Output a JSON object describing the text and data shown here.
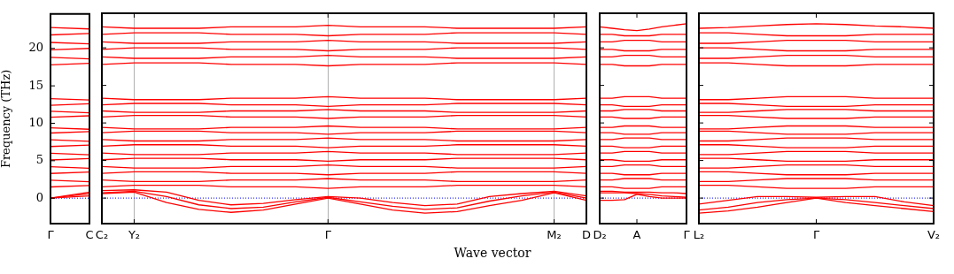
{
  "chart_data": [
    {
      "type": "line",
      "ylabel": "Frequency (THz)",
      "categories": [
        "Γ",
        "C"
      ],
      "ylim": [
        -3.4,
        24.6
      ],
      "yticks": [
        0,
        5,
        10,
        15,
        20
      ],
      "marker": "none",
      "line_style": "solid",
      "legend": false,
      "ref_lines": [
        {
          "axis": "y",
          "value": 0,
          "color": "#0000ff",
          "line_style": "dotted"
        }
      ],
      "series": [
        {
          "color": "#ff0000",
          "values": [
            0,
            0.8
          ]
        },
        {
          "color": "#ff0000",
          "values": [
            0,
            0.6
          ]
        },
        {
          "color": "#ff0000",
          "values": [
            0,
            0.3
          ]
        },
        {
          "color": "#ff0000",
          "values": [
            1.5,
            1.7
          ]
        },
        {
          "color": "#ff0000",
          "values": [
            2.4,
            2.2
          ]
        },
        {
          "color": "#ff0000",
          "values": [
            3.3,
            3.5
          ]
        },
        {
          "color": "#ff0000",
          "values": [
            4.2,
            4.0
          ]
        },
        {
          "color": "#ff0000",
          "values": [
            5.1,
            5.3
          ]
        },
        {
          "color": "#ff0000",
          "values": [
            6.0,
            5.8
          ]
        },
        {
          "color": "#ff0000",
          "values": [
            6.9,
            7.1
          ]
        },
        {
          "color": "#ff0000",
          "values": [
            7.8,
            7.6
          ]
        },
        {
          "color": "#ff0000",
          "values": [
            8.7,
            8.9
          ]
        },
        {
          "color": "#ff0000",
          "values": [
            9.4,
            9.2
          ]
        },
        {
          "color": "#ff0000",
          "values": [
            10.8,
            11.0
          ]
        },
        {
          "color": "#ff0000",
          "values": [
            11.6,
            11.4
          ]
        },
        {
          "color": "#ff0000",
          "values": [
            12.4,
            12.6
          ]
        },
        {
          "color": "#ff0000",
          "values": [
            13.3,
            13.1
          ]
        },
        {
          "color": "#ff0000",
          "values": [
            17.8,
            18.0
          ]
        },
        {
          "color": "#ff0000",
          "values": [
            18.8,
            18.6
          ]
        },
        {
          "color": "#ff0000",
          "values": [
            19.8,
            20.0
          ]
        },
        {
          "color": "#ff0000",
          "values": [
            20.8,
            20.6
          ]
        },
        {
          "color": "#ff0000",
          "values": [
            21.8,
            22.0
          ]
        },
        {
          "color": "#ff0000",
          "values": [
            22.8,
            22.6
          ]
        }
      ]
    },
    {
      "type": "line",
      "xlabel": "Wave vector",
      "categories": [
        "C₂",
        "Y₂",
        null,
        null,
        null,
        null,
        null,
        "Γ",
        null,
        null,
        null,
        null,
        null,
        null,
        "M₂",
        "D"
      ],
      "ylim": [
        -3.4,
        24.6
      ],
      "yticks": [
        0,
        5,
        10,
        15,
        20
      ],
      "tick_labels": "x",
      "grid": "x",
      "marker": "none",
      "line_style": "solid",
      "legend": false,
      "ref_lines": [
        {
          "axis": "y",
          "value": 0,
          "color": "#0000ff",
          "line_style": "dotted"
        }
      ],
      "series": [
        {
          "color": "#ff0000",
          "values": [
            0.6,
            0.8,
            -0.6,
            -1.5,
            -1.9,
            -1.6,
            -0.8,
            0,
            -0.8,
            -1.6,
            -2.0,
            -1.8,
            -1.0,
            -0.3,
            0.7,
            -0.3
          ]
        },
        {
          "color": "#ff0000",
          "values": [
            0.7,
            0.9,
            0.2,
            -0.9,
            -1.4,
            -1.2,
            -0.5,
            0.1,
            -0.5,
            -1.1,
            -1.5,
            -1.3,
            -0.4,
            0.3,
            0.8,
            0.0
          ]
        },
        {
          "color": "#ff0000",
          "values": [
            1.0,
            1.1,
            0.8,
            -0.3,
            -0.9,
            -0.7,
            -0.2,
            0.2,
            0,
            -0.6,
            -1.0,
            -0.8,
            0.2,
            0.6,
            0.9,
            0.3
          ]
        },
        {
          "color": "#ff0000",
          "values": [
            1.5,
            1.7,
            1.7,
            1.7,
            1.5,
            1.5,
            1.5,
            1.3,
            1.5,
            1.5,
            1.5,
            1.7,
            1.7,
            1.7,
            1.7,
            1.5
          ]
        },
        {
          "color": "#ff0000",
          "values": [
            2.4,
            2.2,
            2.2,
            2.2,
            2.4,
            2.4,
            2.4,
            2.6,
            2.4,
            2.4,
            2.4,
            2.2,
            2.2,
            2.2,
            2.2,
            2.4
          ]
        },
        {
          "color": "#ff0000",
          "values": [
            3.3,
            3.5,
            3.5,
            3.5,
            3.3,
            3.3,
            3.3,
            3.1,
            3.3,
            3.3,
            3.3,
            3.5,
            3.5,
            3.5,
            3.5,
            3.3
          ]
        },
        {
          "color": "#ff0000",
          "values": [
            4.2,
            4.0,
            4.0,
            4.0,
            4.2,
            4.2,
            4.2,
            4.4,
            4.2,
            4.2,
            4.2,
            4.0,
            4.0,
            4.0,
            4.0,
            4.2
          ]
        },
        {
          "color": "#ff0000",
          "values": [
            5.1,
            5.3,
            5.3,
            5.3,
            5.1,
            5.1,
            5.1,
            4.9,
            5.1,
            5.1,
            5.1,
            5.3,
            5.3,
            5.3,
            5.3,
            5.1
          ]
        },
        {
          "color": "#ff0000",
          "values": [
            6.0,
            5.8,
            5.8,
            5.8,
            6.0,
            6.0,
            6.0,
            6.2,
            6.0,
            6.0,
            6.0,
            5.8,
            5.8,
            5.8,
            5.8,
            6.0
          ]
        },
        {
          "color": "#ff0000",
          "values": [
            6.9,
            7.1,
            7.1,
            7.1,
            6.9,
            6.9,
            6.9,
            6.7,
            6.9,
            6.9,
            6.9,
            7.1,
            7.1,
            7.1,
            7.1,
            6.9
          ]
        },
        {
          "color": "#ff0000",
          "values": [
            7.8,
            7.6,
            7.6,
            7.6,
            7.8,
            7.8,
            7.8,
            8.0,
            7.8,
            7.8,
            7.8,
            7.6,
            7.6,
            7.6,
            7.6,
            7.8
          ]
        },
        {
          "color": "#ff0000",
          "values": [
            8.7,
            8.9,
            8.9,
            8.9,
            8.7,
            8.7,
            8.7,
            8.5,
            8.7,
            8.7,
            8.7,
            8.9,
            8.9,
            8.9,
            8.9,
            8.7
          ]
        },
        {
          "color": "#ff0000",
          "values": [
            9.4,
            9.2,
            9.2,
            9.2,
            9.4,
            9.4,
            9.4,
            9.6,
            9.4,
            9.4,
            9.4,
            9.2,
            9.2,
            9.2,
            9.2,
            9.4
          ]
        },
        {
          "color": "#ff0000",
          "values": [
            10.8,
            11.0,
            11.0,
            11.0,
            10.8,
            10.8,
            10.8,
            10.6,
            10.8,
            10.8,
            10.8,
            11.0,
            11.0,
            11.0,
            11.0,
            10.8
          ]
        },
        {
          "color": "#ff0000",
          "values": [
            11.6,
            11.4,
            11.4,
            11.4,
            11.6,
            11.6,
            11.6,
            11.8,
            11.6,
            11.6,
            11.6,
            11.4,
            11.4,
            11.4,
            11.4,
            11.6
          ]
        },
        {
          "color": "#ff0000",
          "values": [
            12.4,
            12.6,
            12.6,
            12.6,
            12.4,
            12.4,
            12.4,
            12.2,
            12.4,
            12.4,
            12.4,
            12.6,
            12.6,
            12.6,
            12.6,
            12.4
          ]
        },
        {
          "color": "#ff0000",
          "values": [
            13.3,
            13.1,
            13.1,
            13.1,
            13.3,
            13.3,
            13.3,
            13.5,
            13.3,
            13.3,
            13.3,
            13.1,
            13.1,
            13.1,
            13.1,
            13.3
          ]
        },
        {
          "color": "#ff0000",
          "values": [
            17.8,
            18.0,
            18.0,
            18.0,
            17.8,
            17.8,
            17.8,
            17.6,
            17.8,
            17.8,
            17.8,
            18.0,
            18.0,
            18.0,
            18.0,
            17.8
          ]
        },
        {
          "color": "#ff0000",
          "values": [
            18.8,
            18.6,
            18.6,
            18.6,
            18.8,
            18.8,
            18.8,
            19.0,
            18.8,
            18.8,
            18.8,
            18.6,
            18.6,
            18.6,
            18.6,
            18.8
          ]
        },
        {
          "color": "#ff0000",
          "values": [
            19.8,
            20.0,
            20.0,
            20.0,
            19.8,
            19.8,
            19.8,
            19.6,
            19.8,
            19.8,
            19.8,
            20.0,
            20.0,
            20.0,
            20.0,
            19.8
          ]
        },
        {
          "color": "#ff0000",
          "values": [
            20.8,
            20.6,
            20.6,
            20.6,
            20.8,
            20.8,
            20.8,
            21.0,
            20.8,
            20.8,
            20.8,
            20.6,
            20.6,
            20.6,
            20.6,
            20.8
          ]
        },
        {
          "color": "#ff0000",
          "values": [
            21.8,
            22.0,
            22.0,
            22.0,
            21.8,
            21.8,
            21.8,
            21.6,
            21.8,
            21.8,
            21.8,
            22.0,
            22.0,
            22.0,
            22.0,
            21.8
          ]
        },
        {
          "color": "#ff0000",
          "values": [
            22.8,
            22.6,
            22.6,
            22.6,
            22.8,
            22.8,
            22.8,
            23.0,
            22.8,
            22.8,
            22.8,
            22.6,
            22.6,
            22.6,
            22.6,
            22.8
          ]
        }
      ]
    },
    {
      "type": "line",
      "categories": [
        "D₂",
        null,
        null,
        "A",
        null,
        null,
        null,
        "Γ"
      ],
      "ylim": [
        -3.4,
        24.6
      ],
      "yticks": [
        0,
        5,
        10,
        15,
        20
      ],
      "tick_labels": "x",
      "marker": "none",
      "line_style": "solid",
      "legend": false,
      "ref_lines": [
        {
          "axis": "y",
          "value": 0,
          "color": "#0000ff",
          "line_style": "dotted"
        }
      ],
      "series": [
        {
          "color": "#ff0000",
          "values": [
            -0.3,
            -0.3,
            -0.2,
            0.5,
            0.2,
            0,
            0,
            0
          ]
        },
        {
          "color": "#ff0000",
          "values": [
            0.7,
            0.7,
            0.7,
            0.6,
            0.5,
            0.3,
            0.2,
            0.1
          ]
        },
        {
          "color": "#ff0000",
          "values": [
            0.9,
            0.9,
            0.8,
            0.8,
            0.8,
            0.7,
            0.7,
            0.6
          ]
        },
        {
          "color": "#ff0000",
          "values": [
            1.5,
            1.5,
            1.3,
            1.3,
            1.3,
            1.5,
            1.5,
            1.5
          ]
        },
        {
          "color": "#ff0000",
          "values": [
            2.4,
            2.4,
            2.6,
            2.6,
            2.6,
            2.4,
            2.4,
            2.4
          ]
        },
        {
          "color": "#ff0000",
          "values": [
            3.3,
            3.3,
            3.1,
            3.1,
            3.1,
            3.3,
            3.3,
            3.3
          ]
        },
        {
          "color": "#ff0000",
          "values": [
            4.2,
            4.2,
            4.4,
            4.4,
            4.4,
            4.2,
            4.2,
            4.2
          ]
        },
        {
          "color": "#ff0000",
          "values": [
            5.1,
            5.1,
            4.9,
            4.9,
            4.9,
            5.1,
            5.1,
            5.1
          ]
        },
        {
          "color": "#ff0000",
          "values": [
            6.0,
            6.0,
            6.2,
            6.2,
            6.2,
            6.0,
            6.0,
            6.0
          ]
        },
        {
          "color": "#ff0000",
          "values": [
            6.9,
            6.9,
            6.7,
            6.7,
            6.7,
            6.9,
            6.9,
            6.9
          ]
        },
        {
          "color": "#ff0000",
          "values": [
            7.8,
            7.8,
            8.0,
            8.0,
            8.0,
            7.8,
            7.8,
            7.8
          ]
        },
        {
          "color": "#ff0000",
          "values": [
            8.7,
            8.7,
            8.5,
            8.5,
            8.5,
            8.7,
            8.7,
            8.7
          ]
        },
        {
          "color": "#ff0000",
          "values": [
            9.4,
            9.4,
            9.6,
            9.6,
            9.6,
            9.4,
            9.4,
            9.4
          ]
        },
        {
          "color": "#ff0000",
          "values": [
            10.8,
            10.8,
            10.6,
            10.6,
            10.6,
            10.8,
            10.8,
            10.8
          ]
        },
        {
          "color": "#ff0000",
          "values": [
            11.6,
            11.6,
            11.8,
            11.8,
            11.8,
            11.6,
            11.6,
            11.6
          ]
        },
        {
          "color": "#ff0000",
          "values": [
            12.4,
            12.4,
            12.2,
            12.2,
            12.2,
            12.4,
            12.4,
            12.4
          ]
        },
        {
          "color": "#ff0000",
          "values": [
            13.3,
            13.3,
            13.5,
            13.5,
            13.5,
            13.3,
            13.3,
            13.3
          ]
        },
        {
          "color": "#ff0000",
          "values": [
            17.8,
            17.8,
            17.6,
            17.6,
            17.6,
            17.8,
            17.8,
            17.8
          ]
        },
        {
          "color": "#ff0000",
          "values": [
            18.8,
            18.8,
            19.0,
            19.0,
            19.0,
            18.8,
            18.8,
            18.8
          ]
        },
        {
          "color": "#ff0000",
          "values": [
            19.8,
            19.8,
            19.6,
            19.6,
            19.6,
            19.8,
            19.8,
            19.8
          ]
        },
        {
          "color": "#ff0000",
          "values": [
            20.8,
            20.8,
            21.0,
            21.0,
            21.0,
            20.8,
            20.8,
            20.8
          ]
        },
        {
          "color": "#ff0000",
          "values": [
            21.8,
            21.8,
            21.6,
            21.6,
            21.6,
            21.8,
            21.8,
            21.8
          ]
        },
        {
          "color": "#ff0000",
          "values": [
            22.8,
            22.6,
            22.4,
            22.3,
            22.5,
            22.8,
            23.0,
            23.2
          ]
        }
      ]
    },
    {
      "type": "line",
      "categories": [
        "L₂",
        null,
        null,
        null,
        "Γ",
        null,
        null,
        null,
        "V₂"
      ],
      "ylim": [
        -3.4,
        24.6
      ],
      "yticks": [
        0,
        5,
        10,
        15,
        20
      ],
      "tick_labels": "x",
      "marker": "none",
      "line_style": "solid",
      "legend": false,
      "ref_lines": [
        {
          "axis": "y",
          "value": 0,
          "color": "#0000ff",
          "line_style": "dotted"
        }
      ],
      "series": [
        {
          "color": "#ff0000",
          "values": [
            -2.0,
            -1.7,
            -1.2,
            -0.6,
            0,
            -0.6,
            -1.0,
            -1.4,
            -1.8
          ]
        },
        {
          "color": "#ff0000",
          "values": [
            -1.6,
            -1.2,
            -0.6,
            -0.2,
            0,
            -0.2,
            -0.6,
            -1.0,
            -1.4
          ]
        },
        {
          "color": "#ff0000",
          "values": [
            -0.8,
            -0.3,
            0.2,
            0.2,
            0.1,
            0.2,
            0.2,
            -0.5,
            -1.0
          ]
        },
        {
          "color": "#ff0000",
          "values": [
            1.7,
            1.7,
            1.5,
            1.3,
            1.3,
            1.3,
            1.5,
            1.5,
            1.5
          ]
        },
        {
          "color": "#ff0000",
          "values": [
            2.2,
            2.2,
            2.4,
            2.6,
            2.6,
            2.6,
            2.4,
            2.4,
            2.4
          ]
        },
        {
          "color": "#ff0000",
          "values": [
            3.5,
            3.5,
            3.3,
            3.1,
            3.1,
            3.1,
            3.3,
            3.3,
            3.3
          ]
        },
        {
          "color": "#ff0000",
          "values": [
            4.0,
            4.0,
            4.2,
            4.4,
            4.4,
            4.4,
            4.2,
            4.2,
            4.2
          ]
        },
        {
          "color": "#ff0000",
          "values": [
            5.3,
            5.3,
            5.1,
            4.9,
            4.9,
            4.9,
            5.1,
            5.1,
            5.1
          ]
        },
        {
          "color": "#ff0000",
          "values": [
            5.8,
            5.8,
            6.0,
            6.2,
            6.2,
            6.2,
            6.0,
            6.0,
            6.0
          ]
        },
        {
          "color": "#ff0000",
          "values": [
            7.1,
            7.1,
            6.9,
            6.7,
            6.7,
            6.7,
            6.9,
            6.9,
            6.9
          ]
        },
        {
          "color": "#ff0000",
          "values": [
            7.6,
            7.6,
            7.8,
            8.0,
            8.0,
            8.0,
            7.8,
            7.8,
            7.8
          ]
        },
        {
          "color": "#ff0000",
          "values": [
            8.9,
            8.9,
            8.7,
            8.5,
            8.5,
            8.5,
            8.7,
            8.7,
            8.7
          ]
        },
        {
          "color": "#ff0000",
          "values": [
            9.2,
            9.2,
            9.4,
            9.6,
            9.6,
            9.6,
            9.4,
            9.4,
            9.4
          ]
        },
        {
          "color": "#ff0000",
          "values": [
            11.0,
            11.0,
            10.8,
            10.6,
            10.6,
            10.6,
            10.8,
            10.8,
            10.8
          ]
        },
        {
          "color": "#ff0000",
          "values": [
            11.4,
            11.4,
            11.6,
            11.8,
            11.8,
            11.8,
            11.6,
            11.6,
            11.6
          ]
        },
        {
          "color": "#ff0000",
          "values": [
            12.6,
            12.6,
            12.4,
            12.2,
            12.2,
            12.2,
            12.4,
            12.4,
            12.4
          ]
        },
        {
          "color": "#ff0000",
          "values": [
            13.1,
            13.1,
            13.3,
            13.5,
            13.5,
            13.5,
            13.3,
            13.3,
            13.3
          ]
        },
        {
          "color": "#ff0000",
          "values": [
            18.0,
            18.0,
            17.8,
            17.6,
            17.6,
            17.6,
            17.8,
            17.8,
            17.8
          ]
        },
        {
          "color": "#ff0000",
          "values": [
            18.6,
            18.6,
            18.8,
            19.0,
            19.0,
            19.0,
            18.8,
            18.8,
            18.8
          ]
        },
        {
          "color": "#ff0000",
          "values": [
            20.0,
            20.0,
            19.8,
            19.6,
            19.6,
            19.6,
            19.8,
            19.8,
            19.8
          ]
        },
        {
          "color": "#ff0000",
          "values": [
            20.6,
            20.6,
            20.8,
            21.0,
            21.0,
            21.0,
            20.8,
            20.8,
            20.8
          ]
        },
        {
          "color": "#ff0000",
          "values": [
            22.0,
            22.0,
            21.8,
            21.6,
            21.6,
            21.6,
            21.8,
            21.8,
            21.8
          ]
        },
        {
          "color": "#ff0000",
          "values": [
            22.6,
            22.7,
            22.9,
            23.1,
            23.2,
            23.1,
            22.9,
            22.8,
            22.6
          ]
        }
      ]
    }
  ]
}
